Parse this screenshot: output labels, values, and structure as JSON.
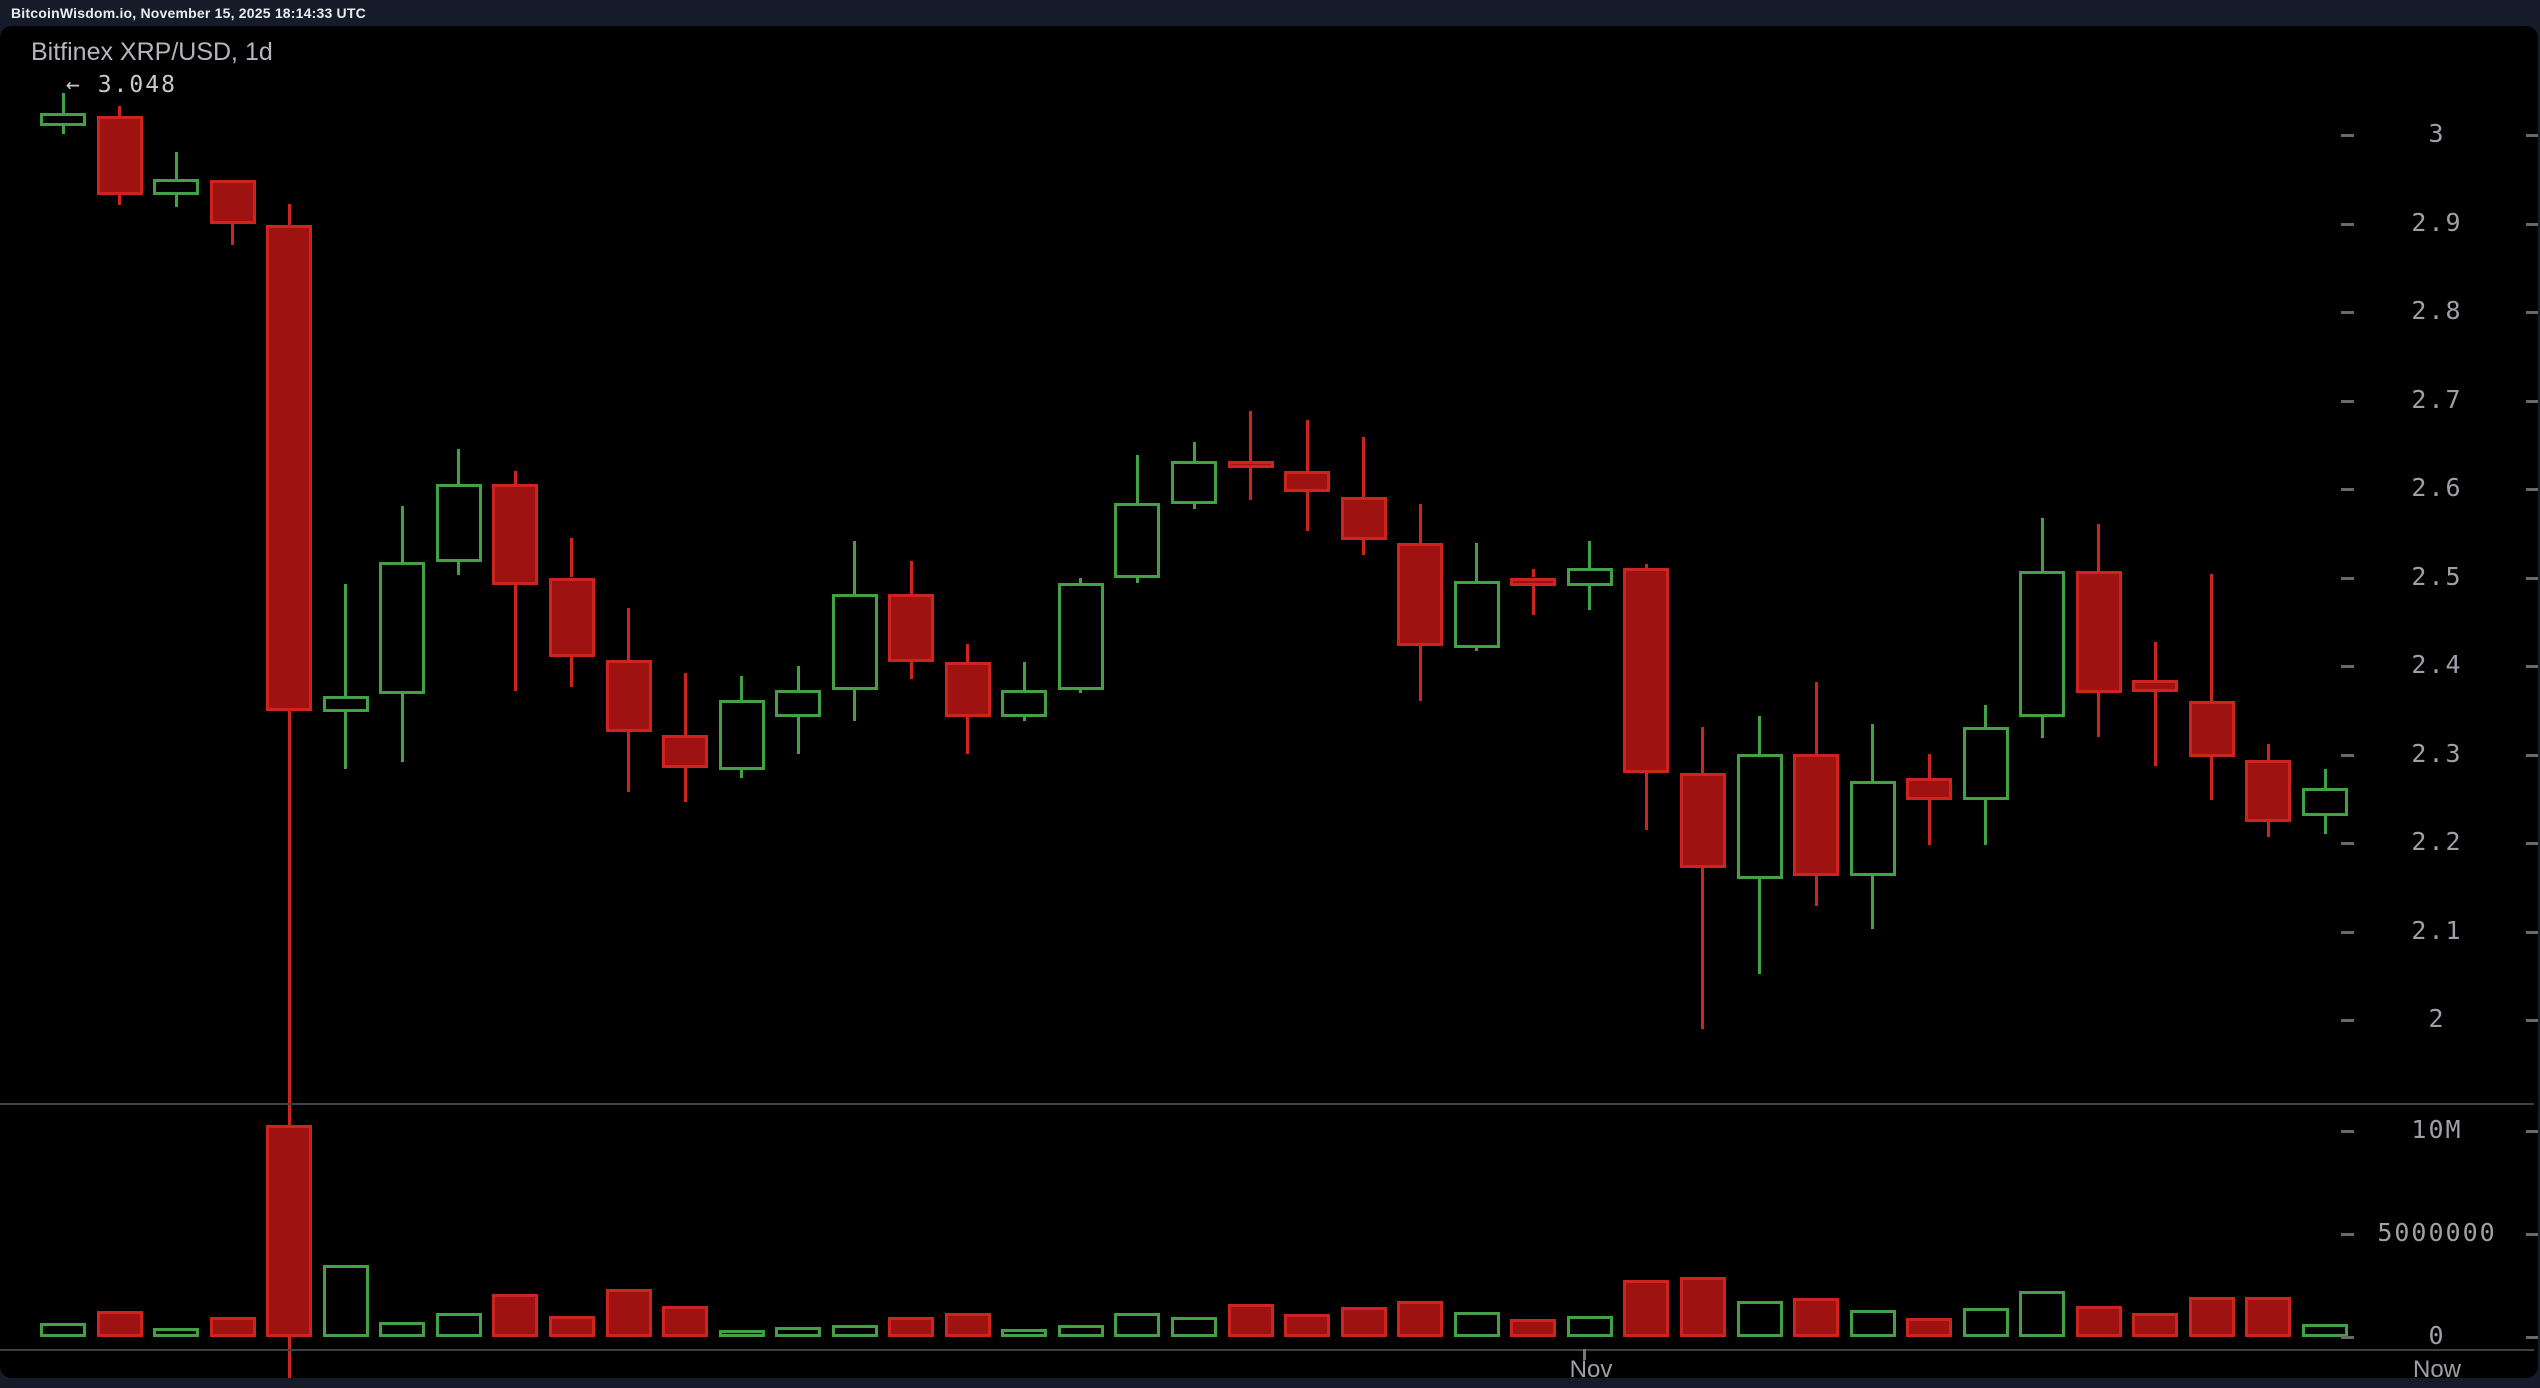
{
  "window": {
    "header_text": "BitcoinWisdom.io, November 15, 2025 18:14:33 UTC"
  },
  "chart": {
    "title": "Bitfinex XRP/USD, 1d",
    "high_price_label": "← 3.048",
    "time_axis": {
      "month_label": "Nov",
      "now_label": "Now"
    },
    "price_axis_ticks": [
      {
        "label": "3",
        "value": 3.0
      },
      {
        "label": "2.9",
        "value": 2.9
      },
      {
        "label": "2.8",
        "value": 2.8
      },
      {
        "label": "2.7",
        "value": 2.7
      },
      {
        "label": "2.6",
        "value": 2.6
      },
      {
        "label": "2.5",
        "value": 2.5
      },
      {
        "label": "2.4",
        "value": 2.4
      },
      {
        "label": "2.3",
        "value": 2.3
      },
      {
        "label": "2.2",
        "value": 2.2
      },
      {
        "label": "2.1",
        "value": 2.1
      },
      {
        "label": "2",
        "value": 2.0
      }
    ],
    "volume_axis_ticks": [
      {
        "label": "10M",
        "value": 10000000
      },
      {
        "label": "5000000",
        "value": 5000000
      },
      {
        "label": "0",
        "value": 0
      }
    ],
    "colors": {
      "up_green": "#43a047",
      "down_red_fill": "#9e1311",
      "down_red_border": "#ce2420",
      "panel_background": "#000000",
      "page_background": "#151b28",
      "axis_text": "#9da1a6",
      "axis_line": "#3d4045"
    }
  },
  "chart_data": {
    "type": "candlestick_with_volume",
    "exchange_pair": "Bitfinex XRP/USD",
    "interval": "1d",
    "title": "Bitfinex XRP/USD, 1d",
    "price_axis_range": [
      2.0,
      3.0
    ],
    "volume_axis_max": 10000000,
    "session_high_marker": 3.048,
    "x_axis_labels": [
      "Nov",
      "Now"
    ],
    "fields": [
      "open",
      "high",
      "low",
      "close",
      "volume"
    ],
    "candles": [
      [
        3.01,
        3.048,
        3.001,
        3.025,
        700000
      ],
      [
        3.022,
        3.033,
        2.921,
        2.932,
        1250000
      ],
      [
        2.932,
        2.981,
        2.919,
        2.95,
        450000
      ],
      [
        2.949,
        2.949,
        2.876,
        2.899,
        950000
      ],
      [
        2.898,
        2.922,
        1.55,
        2.349,
        10300000
      ],
      [
        2.348,
        2.493,
        2.284,
        2.366,
        3500000
      ],
      [
        2.368,
        2.581,
        2.292,
        2.517,
        750000
      ],
      [
        2.517,
        2.645,
        2.503,
        2.606,
        1150000
      ],
      [
        2.606,
        2.62,
        2.372,
        2.492,
        2100000
      ],
      [
        2.5,
        2.545,
        2.376,
        2.41,
        1000000
      ],
      [
        2.407,
        2.466,
        2.258,
        2.325,
        2350000
      ],
      [
        2.322,
        2.392,
        2.246,
        2.285,
        1500000
      ],
      [
        2.282,
        2.389,
        2.274,
        2.362,
        350000
      ],
      [
        2.342,
        2.4,
        2.3,
        2.373,
        500000
      ],
      [
        2.373,
        2.541,
        2.338,
        2.481,
        600000
      ],
      [
        2.481,
        2.519,
        2.385,
        2.404,
        950000
      ],
      [
        2.404,
        2.425,
        2.3,
        2.342,
        1150000
      ],
      [
        2.342,
        2.404,
        2.338,
        2.373,
        400000
      ],
      [
        2.373,
        2.499,
        2.369,
        2.494,
        600000
      ],
      [
        2.499,
        2.638,
        2.494,
        2.584,
        1150000
      ],
      [
        2.583,
        2.653,
        2.577,
        2.632,
        950000
      ],
      [
        2.632,
        2.688,
        2.588,
        2.624,
        1600000
      ],
      [
        2.62,
        2.678,
        2.553,
        2.597,
        1100000
      ],
      [
        2.591,
        2.659,
        2.525,
        2.542,
        1450000
      ],
      [
        2.539,
        2.583,
        2.36,
        2.423,
        1750000
      ],
      [
        2.42,
        2.539,
        2.417,
        2.496,
        1200000
      ],
      [
        2.5,
        2.51,
        2.458,
        2.49,
        850000
      ],
      [
        2.49,
        2.541,
        2.463,
        2.511,
        1000000
      ],
      [
        2.511,
        2.515,
        2.215,
        2.279,
        2750000
      ],
      [
        2.279,
        2.331,
        1.99,
        2.172,
        2900000
      ],
      [
        2.159,
        2.344,
        2.052,
        2.301,
        1750000
      ],
      [
        2.301,
        2.382,
        2.129,
        2.163,
        1900000
      ],
      [
        2.163,
        2.334,
        2.103,
        2.27,
        1300000
      ],
      [
        2.274,
        2.301,
        2.198,
        2.249,
        900000
      ],
      [
        2.249,
        2.356,
        2.198,
        2.331,
        1400000
      ],
      [
        2.342,
        2.567,
        2.319,
        2.507,
        2250000
      ],
      [
        2.507,
        2.56,
        2.32,
        2.37,
        1500000
      ],
      [
        2.384,
        2.427,
        2.287,
        2.371,
        1150000
      ],
      [
        2.36,
        2.504,
        2.249,
        2.297,
        1950000
      ],
      [
        2.294,
        2.312,
        2.207,
        2.224,
        1950000
      ],
      [
        2.23,
        2.284,
        2.21,
        2.262,
        650000
      ]
    ]
  }
}
